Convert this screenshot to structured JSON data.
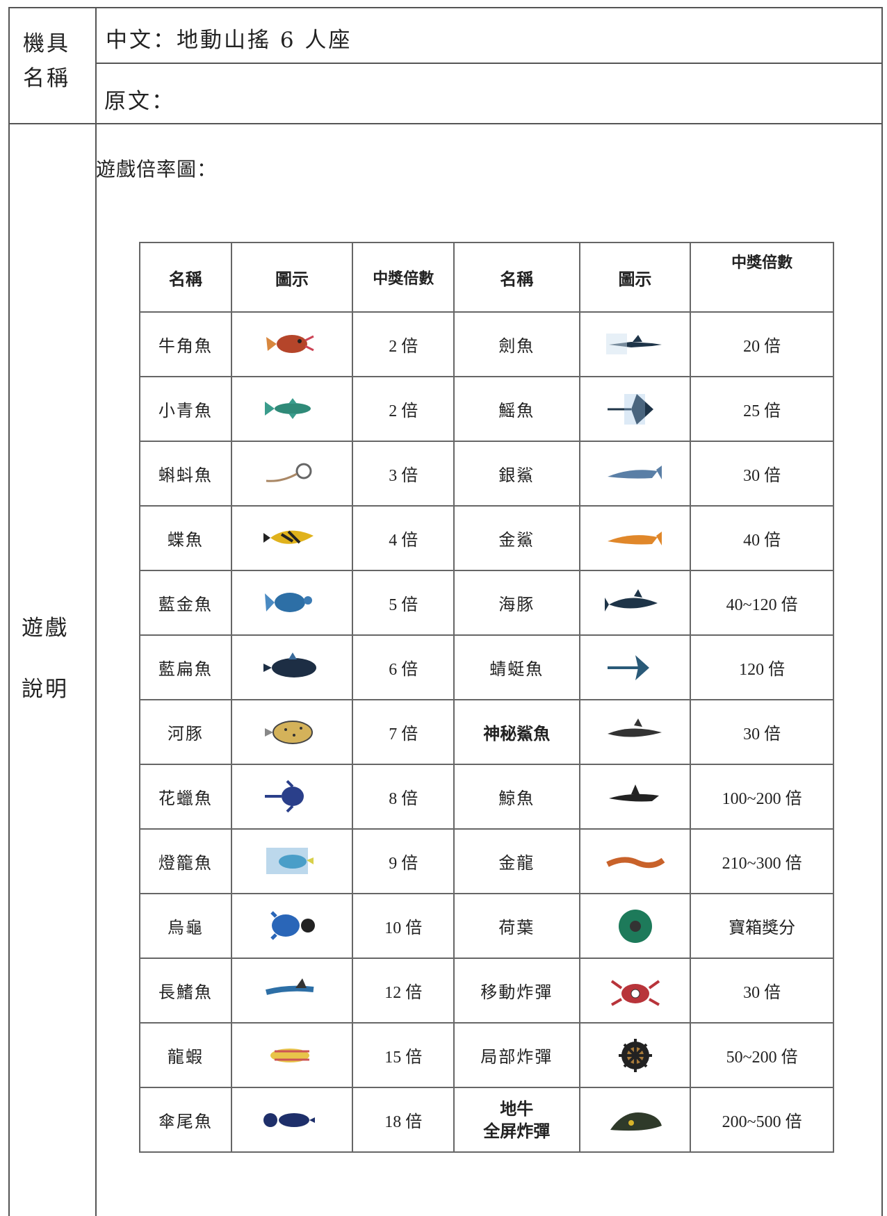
{
  "header": {
    "name_label": "機具\n名稱",
    "chinese_name": "中文：地動山搖 6 人座",
    "original_name": "原文：",
    "desc_label": "遊戲\n說明"
  },
  "section": {
    "caption": "遊戲倍率圖："
  },
  "table": {
    "headers": [
      "名稱",
      "圖示",
      "中獎倍數",
      "名稱",
      "圖示",
      "中獎倍數"
    ],
    "rows": [
      {
        "left_name": "牛角魚",
        "left_icon": "horned-fish-icon",
        "left_value": "2 倍",
        "right_name": "劍魚",
        "right_icon": "swordfish-icon",
        "right_value": "20 倍"
      },
      {
        "left_name": "小青魚",
        "left_icon": "small-green-fish-icon",
        "left_value": "2 倍",
        "right_name": "鰩魚",
        "right_icon": "ray-icon",
        "right_value": "25 倍"
      },
      {
        "left_name": "蝌蚪魚",
        "left_icon": "tadpole-fish-icon",
        "left_value": "3 倍",
        "right_name": "銀鯊",
        "right_icon": "silver-shark-icon",
        "right_value": "30 倍"
      },
      {
        "left_name": "蝶魚",
        "left_icon": "butterfly-fish-icon",
        "left_value": "4 倍",
        "right_name": "金鯊",
        "right_icon": "gold-shark-icon",
        "right_value": "40 倍"
      },
      {
        "left_name": "藍金魚",
        "left_icon": "blue-goldfish-icon",
        "left_value": "5 倍",
        "right_name": "海豚",
        "right_icon": "dolphin-icon",
        "right_value": "40~120 倍"
      },
      {
        "left_name": "藍扁魚",
        "left_icon": "blue-flatfish-icon",
        "left_value": "6 倍",
        "right_name": "蜻蜓魚",
        "right_icon": "dragonfly-fish-icon",
        "right_value": "120 倍"
      },
      {
        "left_name": "河豚",
        "left_icon": "pufferfish-icon",
        "left_value": "7 倍",
        "right_name": "神秘鯊魚",
        "right_bold": true,
        "right_icon": "mystery-shark-icon",
        "right_value": "30 倍"
      },
      {
        "left_name": "花蠟魚",
        "left_icon": "flower-fish-icon",
        "left_value": "8 倍",
        "right_name": "鯨魚",
        "right_icon": "whale-icon",
        "right_value": "100~200 倍"
      },
      {
        "left_name": "燈籠魚",
        "left_icon": "lantern-fish-icon",
        "left_value": "9 倍",
        "right_name": "金龍",
        "right_icon": "golden-dragon-icon",
        "right_value": "210~300 倍"
      },
      {
        "left_name": "烏龜",
        "left_icon": "turtle-icon",
        "left_value": "10 倍",
        "right_name": "荷葉",
        "right_icon": "lotus-leaf-icon",
        "right_value": "寶箱獎分"
      },
      {
        "left_name": "長鰭魚",
        "left_icon": "long-fin-fish-icon",
        "left_value": "12 倍",
        "right_name": "移動炸彈",
        "right_icon": "crab-bomb-icon",
        "right_value": "30 倍"
      },
      {
        "left_name": "龍蝦",
        "left_icon": "lobster-icon",
        "left_value": "15 倍",
        "right_name": "局部炸彈",
        "right_icon": "wheel-bomb-icon",
        "right_value": "50~200 倍"
      },
      {
        "left_name": "傘尾魚",
        "left_icon": "umbrella-tail-fish-icon",
        "left_value": "18 倍",
        "right_name": "地牛\n全屏炸彈",
        "right_multi": true,
        "right_icon": "earth-ox-icon",
        "right_value": "200~500 倍"
      }
    ]
  },
  "colors": {
    "border": "#555555",
    "text": "#222222"
  }
}
